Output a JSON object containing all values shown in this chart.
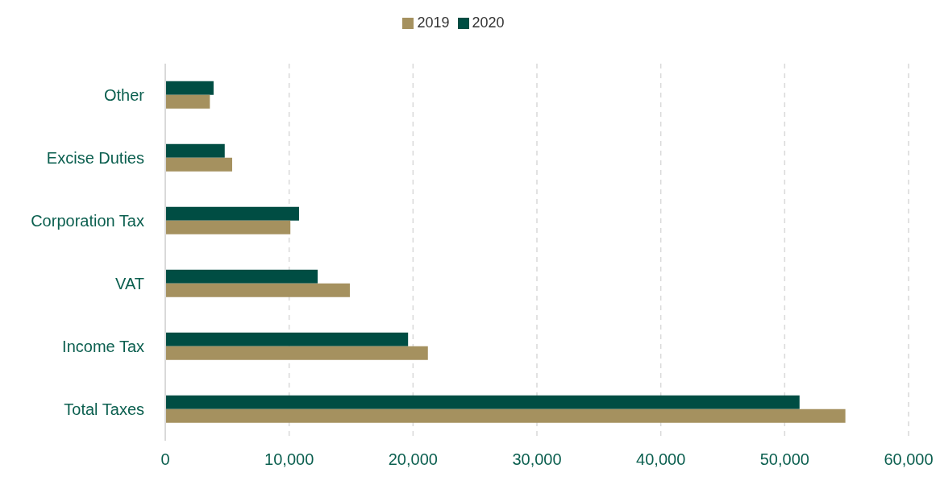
{
  "chart_data": {
    "type": "bar",
    "orientation": "horizontal",
    "categories": [
      "Other",
      "Excise Duties",
      "Corporation Tax",
      "VAT",
      "Income Tax",
      "Total Taxes"
    ],
    "series": [
      {
        "name": "2020",
        "color": "#004d43",
        "values": [
          3900,
          4800,
          10800,
          12300,
          19600,
          51200
        ]
      },
      {
        "name": "2019",
        "color": "#a5915f",
        "values": [
          3600,
          5400,
          10100,
          14900,
          21200,
          54900
        ]
      }
    ],
    "xlim": [
      0,
      60000
    ],
    "xticks": [
      {
        "value": 0,
        "label": "0"
      },
      {
        "value": 10000,
        "label": "10,000"
      },
      {
        "value": 20000,
        "label": "20,000"
      },
      {
        "value": 30000,
        "label": "30,000"
      },
      {
        "value": 40000,
        "label": "40,000"
      },
      {
        "value": 50000,
        "label": "50,000"
      },
      {
        "value": 60000,
        "label": "60,000"
      }
    ],
    "grid": "x",
    "legend": "top"
  }
}
